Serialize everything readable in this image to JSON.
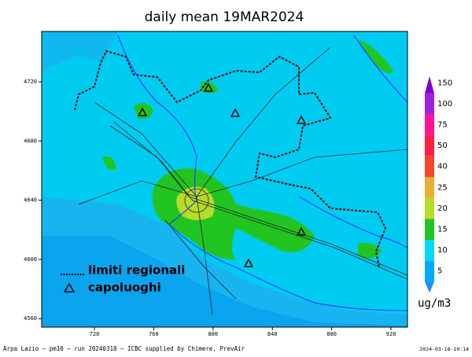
{
  "title": "daily mean 19MAR2024",
  "x_ticks": [
    "720",
    "760",
    "800",
    "840",
    "880",
    "920"
  ],
  "y_ticks": [
    "4720",
    "4680",
    "4640",
    "4600",
    "4560"
  ],
  "colorbar": {
    "levels": [
      "5",
      "10",
      "15",
      "20",
      "25",
      "40",
      "50",
      "75",
      "100",
      "150"
    ],
    "colors": [
      "#1e8cff",
      "#00a8ff",
      "#00d8f8",
      "#22c422",
      "#b4dc28",
      "#e8b030",
      "#f04828",
      "#ff1e46",
      "#ff1493",
      "#a020e0",
      "#8000d0"
    ],
    "unit": "ug/m3"
  },
  "legend": {
    "boundary": "limiti regionali",
    "capitals": "capoluoghi"
  },
  "footer": {
    "left": "Arpa Lazio – pm10 – run 20240318 – ICBC supplied by Chimere, PrevAir",
    "right": "2024-03-18-10:14"
  }
}
